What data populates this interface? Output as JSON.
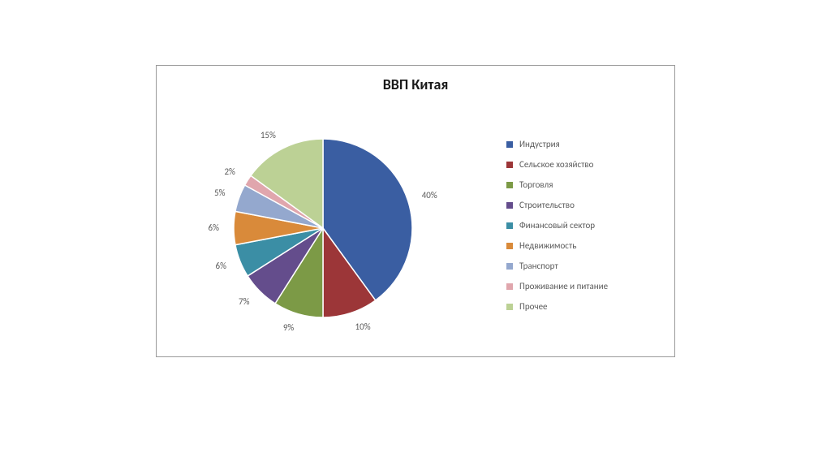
{
  "chart": {
    "type": "pie",
    "title": "ВВП Китая",
    "title_fontsize": 18,
    "title_fontweight": "bold",
    "background_color": "#ffffff",
    "border_color": "#9a9a9a",
    "pie_radius": 110,
    "label_fontsize": 11,
    "label_color": "#5a5a5a",
    "legend_fontsize": 11,
    "legend_position": "right",
    "start_angle_deg": 270,
    "slices": [
      {
        "label": "Индустрия",
        "value": 40,
        "display": "40%",
        "color": "#3a5ea2"
      },
      {
        "label": "Сельское хозяйство",
        "value": 10,
        "display": "10%",
        "color": "#9c3638"
      },
      {
        "label": "Торговля",
        "value": 9,
        "display": "9%",
        "color": "#7c9a46"
      },
      {
        "label": "Строительство",
        "value": 7,
        "display": "7%",
        "color": "#644d8c"
      },
      {
        "label": "Финансовый сектор",
        "value": 6,
        "display": "6%",
        "color": "#3b8ea5"
      },
      {
        "label": "Недвижимость",
        "value": 6,
        "display": "6%",
        "color": "#d98a3a"
      },
      {
        "label": "Транспорт",
        "value": 5,
        "display": "5%",
        "color": "#94a8ce"
      },
      {
        "label": "Проживание и питание",
        "value": 2,
        "display": "2%",
        "color": "#e0a6ad"
      },
      {
        "label": "Прочее",
        "value": 15,
        "display": "15%",
        "color": "#bcd195"
      }
    ]
  }
}
